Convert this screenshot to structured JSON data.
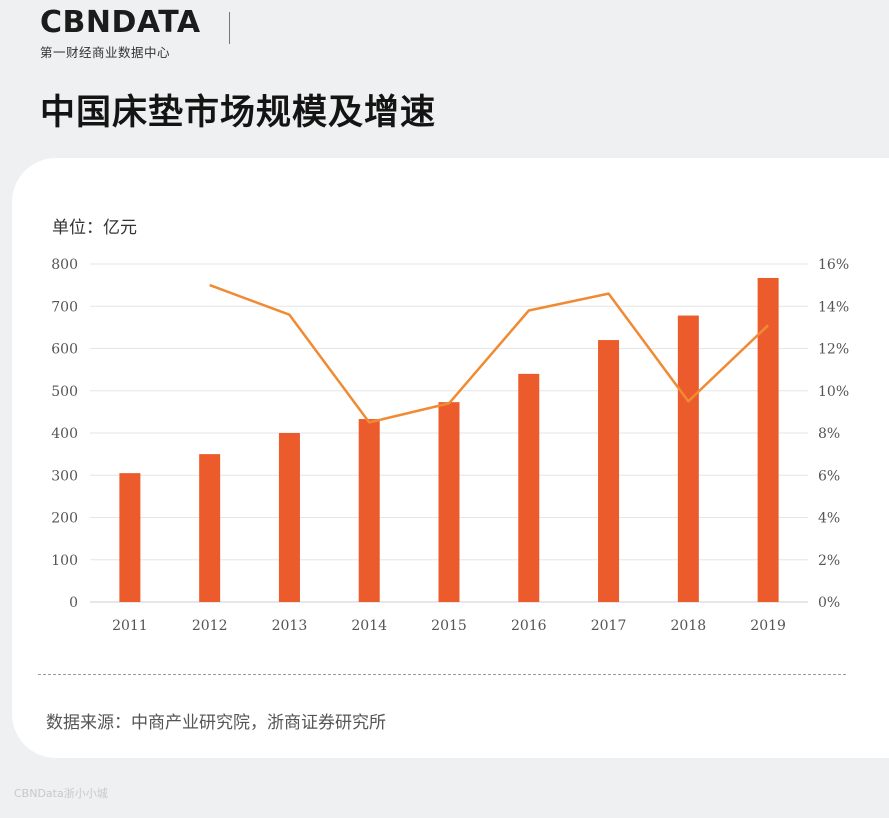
{
  "brand": {
    "logo_text": "CBNDATA",
    "tagline": "第一财经商业数据中心"
  },
  "title": "中国床垫市场规模及增速",
  "unit_label": "单位：亿元",
  "source": "数据来源：中商产业研究院，浙商证券研究所",
  "watermark": "CBNData浙小小城",
  "colors": {
    "bar": "#eb5b2b",
    "line": "#f08a33",
    "grid": "#e6e6e6",
    "background": "#eef0f1"
  },
  "chart_data": {
    "type": "bar",
    "categories": [
      "2011",
      "2012",
      "2013",
      "2014",
      "2015",
      "2016",
      "2017",
      "2018",
      "2019"
    ],
    "series": [
      {
        "type": "bar",
        "values": [
          305,
          350,
          400,
          433,
          473,
          540,
          620,
          678,
          767
        ]
      },
      {
        "type": "line",
        "values": [
          null,
          15.0,
          13.6,
          8.5,
          9.4,
          13.8,
          14.6,
          9.5,
          13.1
        ]
      }
    ],
    "y_left": {
      "min": 0,
      "max": 800,
      "ticks": [
        "0",
        "100",
        "200",
        "300",
        "400",
        "500",
        "600",
        "700",
        "800"
      ]
    },
    "y_right": {
      "min": 0,
      "max": 16,
      "ticks": [
        "0%",
        "2%",
        "4%",
        "6%",
        "8%",
        "10%",
        "12%",
        "14%",
        "16%"
      ]
    },
    "grid": true
  }
}
